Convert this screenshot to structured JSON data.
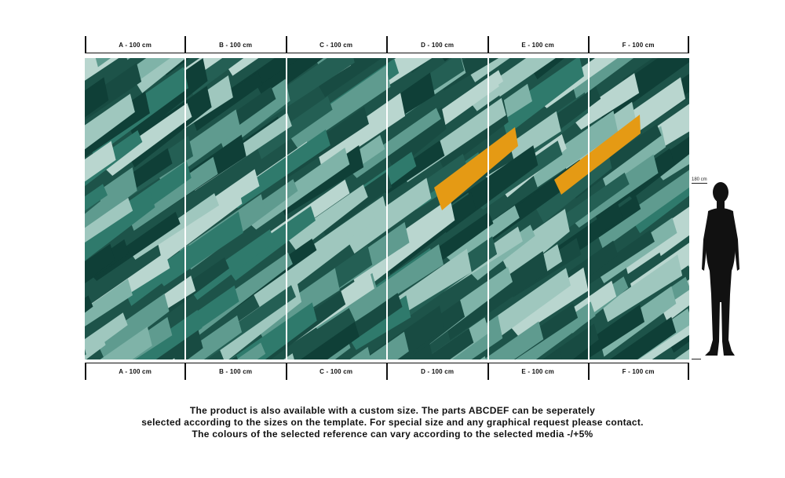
{
  "rulers": {
    "top": [
      "A - 100 cm",
      "B - 100 cm",
      "C - 100 cm",
      "D - 100 cm",
      "E - 100 cm",
      "F - 100 cm"
    ],
    "bottom": [
      "A - 100 cm",
      "B - 100 cm",
      "C - 100 cm",
      "D - 100 cm",
      "E - 100 cm",
      "F - 100 cm"
    ]
  },
  "scale_figure": {
    "height_label": "180 cm",
    "icon": "human-silhouette-icon"
  },
  "colors": {
    "teal_dark": "#0f3f37",
    "teal_mid": "#2f7a6c",
    "teal_light": "#9fc7be",
    "accent_gold": "#e59a14"
  },
  "info_text": {
    "line1": "The product is also available with a custom size. The parts ABCDEF can be seperately",
    "line2": "selected according to the sizes on the template. For special size and any graphical request please contact.",
    "line3": "The colours of the selected reference can vary according to the selected media -/+5%"
  }
}
